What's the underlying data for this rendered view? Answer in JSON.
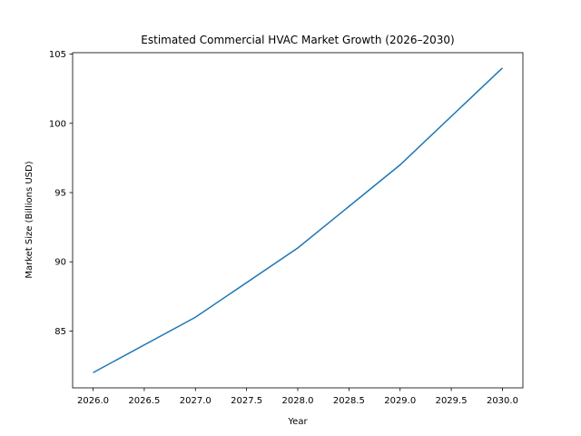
{
  "chart_data": {
    "type": "line",
    "title": "Estimated Commercial HVAC Market Growth (2026–2030)",
    "xlabel": "Year",
    "ylabel": "Market Size (Billions USD)",
    "x": [
      2026,
      2027,
      2028,
      2029,
      2030
    ],
    "series": [
      {
        "values": [
          82,
          86,
          91,
          97,
          104
        ],
        "color": "#1f77b4"
      }
    ],
    "xlim": [
      2025.8,
      2030.2
    ],
    "ylim": [
      80.9,
      105.1
    ],
    "xticks": [
      2026.0,
      2026.5,
      2027.0,
      2027.5,
      2028.0,
      2028.5,
      2029.0,
      2029.5,
      2030.0
    ],
    "xtick_labels": [
      "2026.0",
      "2026.5",
      "2027.0",
      "2027.5",
      "2028.0",
      "2028.5",
      "2029.0",
      "2029.5",
      "2030.0"
    ],
    "yticks": [
      85,
      90,
      95,
      100,
      105
    ],
    "ytick_labels": [
      "85",
      "90",
      "95",
      "100",
      "105"
    ],
    "grid": false,
    "legend": "none"
  }
}
